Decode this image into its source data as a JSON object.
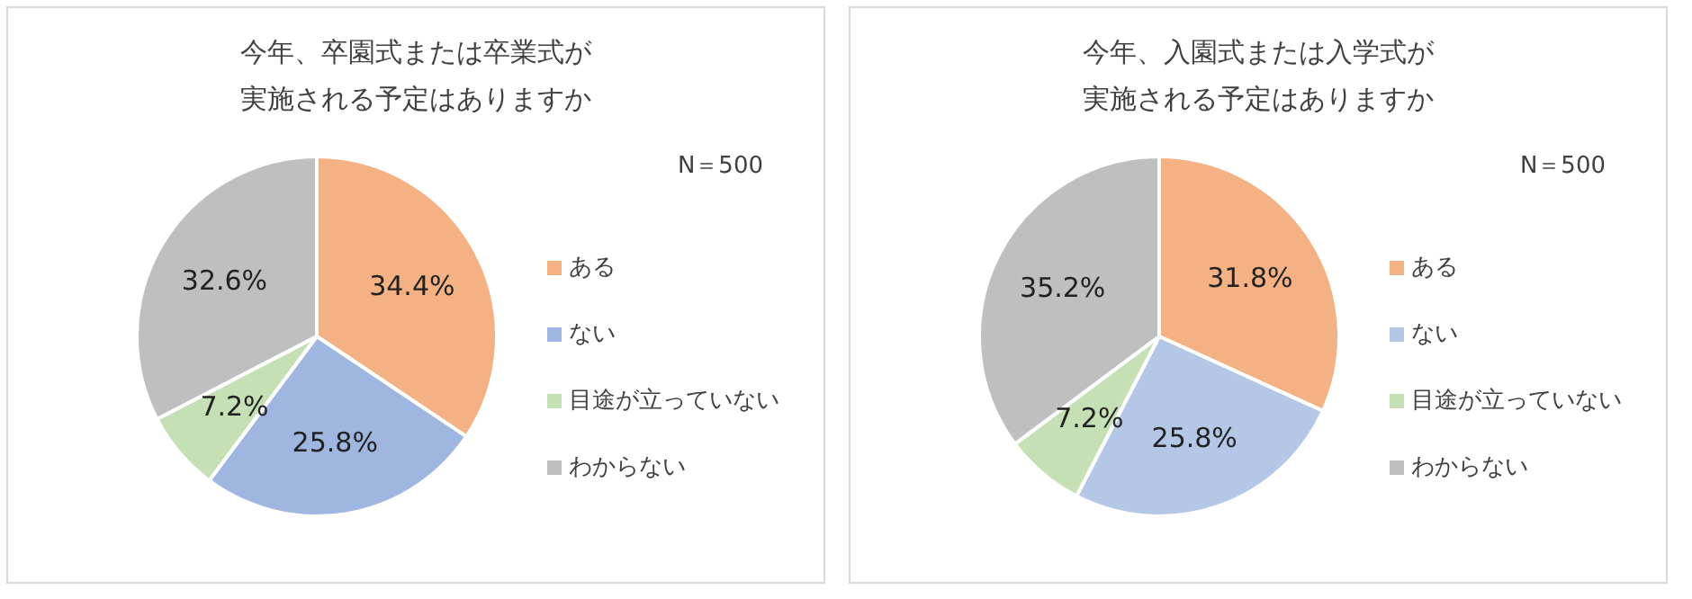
{
  "chart_data": [
    {
      "type": "pie",
      "title": "今年、卒園式または卒業式が実施される予定はありますか",
      "categories": [
        "ある",
        "ない",
        "目途が立っていない",
        "わからない"
      ],
      "values": [
        34.4,
        25.8,
        7.2,
        32.6
      ],
      "value_labels": [
        "34.4%",
        "25.8%",
        "7.2%",
        "32.6%"
      ],
      "colors": [
        "#f4b183",
        "#9fb6e0",
        "#c5e0b4",
        "#bfbfbf"
      ],
      "legend": "right",
      "annotations": [
        "N＝500"
      ]
    },
    {
      "type": "pie",
      "title": "今年、入園式または入学式が実施される予定はありますか",
      "categories": [
        "ある",
        "ない",
        "目途が立っていない",
        "わからない"
      ],
      "values": [
        31.8,
        25.8,
        7.2,
        35.2
      ],
      "value_labels": [
        "31.8%",
        "25.8%",
        "7.2%",
        "35.2%"
      ],
      "colors": [
        "#f4b183",
        "#b4c7e7",
        "#c5e0b4",
        "#bfbfbf"
      ],
      "legend": "right",
      "annotations": [
        "N＝500"
      ]
    }
  ]
}
